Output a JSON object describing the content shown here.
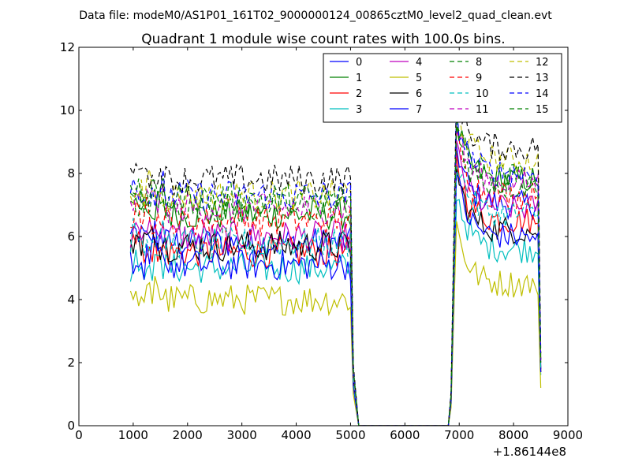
{
  "figure": {
    "suptitle": "Data file: modeM0/AS1P01_161T02_9000000124_00865cztM0_level2_quad_clean.evt"
  },
  "chart_data": {
    "type": "line",
    "title": "Quadrant 1 module wise count rates with 100.0s bins.",
    "xlabel": "",
    "ylabel": "",
    "x_offset_label": "+1.86144e8",
    "xlim": [
      0,
      9000
    ],
    "ylim": [
      0,
      12
    ],
    "xticks": [
      0,
      1000,
      2000,
      3000,
      4000,
      5000,
      6000,
      7000,
      8000,
      9000
    ],
    "xtick_labels": [
      "0",
      "1000",
      "2000",
      "3000",
      "4000",
      "5000",
      "6000",
      "7000",
      "8000",
      "9000"
    ],
    "yticks": [
      0,
      2,
      4,
      6,
      8,
      10,
      12
    ],
    "ytick_labels": [
      "0",
      "2",
      "4",
      "6",
      "8",
      "10",
      "12"
    ],
    "legend_position": "top-right",
    "segment1": {
      "x_start": 950,
      "x_end": 5000,
      "step": 50
    },
    "segment2": {
      "x_start": 6950,
      "x_end": 8450,
      "step": 50
    },
    "zero_range": [
      5150,
      6800
    ],
    "tail_x": [
      5050,
      5150
    ],
    "ramp_x": 6850,
    "series": [
      {
        "name": "0",
        "color": "#0000ff",
        "dashed": false,
        "level1": 5.8,
        "level2": 7.3,
        "end": 1.8
      },
      {
        "name": "1",
        "color": "#008000",
        "dashed": false,
        "level1": 6.7,
        "level2": 8.1,
        "end": 2.0
      },
      {
        "name": "2",
        "color": "#ff0000",
        "dashed": false,
        "level1": 5.5,
        "level2": 6.8,
        "end": 1.7
      },
      {
        "name": "3",
        "color": "#00bfbf",
        "dashed": false,
        "level1": 5.0,
        "level2": 5.9,
        "end": 1.6
      },
      {
        "name": "4",
        "color": "#bf00bf",
        "dashed": false,
        "level1": 6.0,
        "level2": 7.2,
        "end": 1.8
      },
      {
        "name": "5",
        "color": "#bfbf00",
        "dashed": false,
        "level1": 4.0,
        "level2": 4.8,
        "end": 1.2
      },
      {
        "name": "6",
        "color": "#000000",
        "dashed": false,
        "level1": 5.7,
        "level2": 6.5,
        "end": 1.7
      },
      {
        "name": "7",
        "color": "#0000ff",
        "dashed": false,
        "level1": 5.1,
        "level2": 6.3,
        "end": 1.7
      },
      {
        "name": "8",
        "color": "#008000",
        "dashed": true,
        "level1": 6.9,
        "level2": 8.2,
        "end": 2.1
      },
      {
        "name": "9",
        "color": "#ff0000",
        "dashed": true,
        "level1": 6.5,
        "level2": 7.6,
        "end": 2.0
      },
      {
        "name": "10",
        "color": "#00bfbf",
        "dashed": true,
        "level1": 5.8,
        "level2": 7.0,
        "end": 1.8
      },
      {
        "name": "11",
        "color": "#bf00bf",
        "dashed": true,
        "level1": 6.9,
        "level2": 8.0,
        "end": 2.0
      },
      {
        "name": "12",
        "color": "#bfbf00",
        "dashed": true,
        "level1": 7.3,
        "level2": 8.7,
        "end": 2.2
      },
      {
        "name": "13",
        "color": "#000000",
        "dashed": true,
        "level1": 7.8,
        "level2": 9.1,
        "end": 2.3
      },
      {
        "name": "14",
        "color": "#0000ff",
        "dashed": true,
        "level1": 7.3,
        "level2": 8.3,
        "end": 2.1
      },
      {
        "name": "15",
        "color": "#008000",
        "dashed": true,
        "level1": 7.2,
        "level2": 7.9,
        "end": 2.0
      }
    ]
  }
}
